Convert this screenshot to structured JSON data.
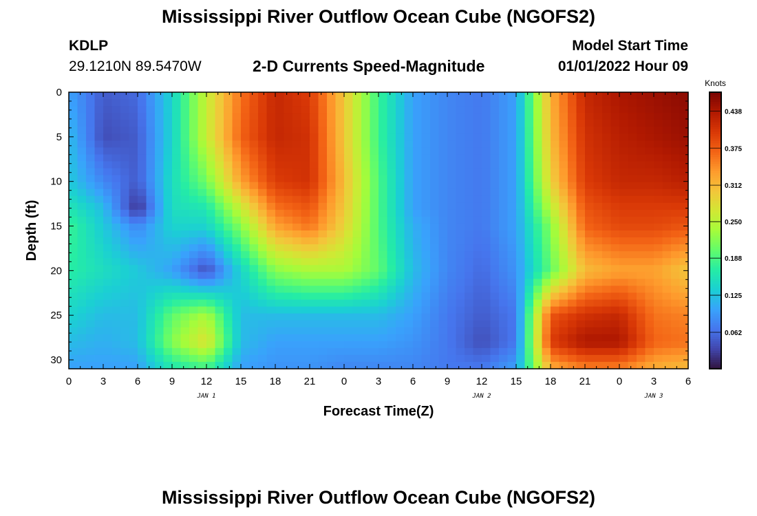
{
  "header": {
    "title": "Mississippi River Outflow Ocean Cube (NGOFS2)",
    "station_id": "KDLP",
    "station_coords": "29.1210N  89.5470W",
    "subtitle": "2-D Currents Speed-Magnitude",
    "model_start_label": "Model Start Time",
    "model_start_value": "01/01/2022 Hour 09"
  },
  "footer": {
    "title": "Mississippi River Outflow Ocean Cube (NGOFS2)"
  },
  "chart_data": {
    "type": "heatmap",
    "subtitle": "2-D Currents Speed-Magnitude",
    "xlabel": "Forecast Time(Z)",
    "ylabel": "Depth (ft)",
    "x_unit": "forecast hour",
    "xlim": [
      0,
      54
    ],
    "ylim": [
      0,
      31
    ],
    "y_inverted": true,
    "x_ticks": [
      0,
      3,
      6,
      9,
      12,
      15,
      18,
      21,
      24,
      27,
      30,
      33,
      36,
      39,
      42,
      45,
      48,
      51,
      54
    ],
    "x_tick_labels": [
      "0",
      "3",
      "6",
      "9",
      "12",
      "15",
      "18",
      "21",
      "0",
      "3",
      "6",
      "9",
      "12",
      "15",
      "18",
      "21",
      "0",
      "3",
      "6"
    ],
    "y_ticks": [
      0,
      5,
      10,
      15,
      20,
      25,
      30
    ],
    "y_tick_labels": [
      "0",
      "5",
      "10",
      "15",
      "20",
      "25",
      "30"
    ],
    "date_labels": [
      {
        "x": 12,
        "label": "JAN 1"
      },
      {
        "x": 36,
        "label": "JAN 2"
      },
      {
        "x": 51,
        "label": "JAN 3"
      }
    ],
    "colorbar": {
      "title": "Knots",
      "min": 0.0,
      "max": 0.47,
      "ticks": [
        0.438,
        0.375,
        0.312,
        0.25,
        0.188,
        0.125,
        0.062
      ],
      "tick_labels": [
        "0.438",
        "0.375",
        "0.312",
        "0.250",
        "0.188",
        "0.125",
        "0.062"
      ],
      "colors": [
        "#30123b",
        "#4145ab",
        "#4675ed",
        "#39a2fc",
        "#1bcfd4",
        "#24eca6",
        "#61fc6c",
        "#a4fc3b",
        "#d1e834",
        "#f3c63a",
        "#fe9b2d",
        "#f36315",
        "#d93806",
        "#b11901",
        "#7a0403"
      ]
    },
    "grid": false,
    "field_knots": {
      "times": [
        0,
        3,
        6,
        9,
        12,
        15,
        18,
        21,
        24,
        27,
        30,
        33,
        36,
        39,
        42,
        45,
        48,
        51,
        54
      ],
      "depths": [
        0,
        5,
        10,
        13,
        15,
        20,
        25,
        28,
        31
      ],
      "rows": [
        [
          0.1,
          0.05,
          0.06,
          0.14,
          0.26,
          0.36,
          0.42,
          0.4,
          0.3,
          0.18,
          0.1,
          0.08,
          0.07,
          0.1,
          0.32,
          0.42,
          0.44,
          0.45,
          0.46
        ],
        [
          0.12,
          0.04,
          0.05,
          0.14,
          0.26,
          0.37,
          0.42,
          0.41,
          0.3,
          0.18,
          0.1,
          0.08,
          0.07,
          0.1,
          0.31,
          0.41,
          0.43,
          0.44,
          0.45
        ],
        [
          0.13,
          0.08,
          0.05,
          0.15,
          0.21,
          0.33,
          0.4,
          0.41,
          0.31,
          0.19,
          0.1,
          0.08,
          0.07,
          0.1,
          0.29,
          0.4,
          0.42,
          0.42,
          0.43
        ],
        [
          0.16,
          0.12,
          0.02,
          0.15,
          0.16,
          0.26,
          0.36,
          0.38,
          0.3,
          0.19,
          0.1,
          0.08,
          0.07,
          0.1,
          0.25,
          0.38,
          0.4,
          0.4,
          0.4
        ],
        [
          0.18,
          0.13,
          0.08,
          0.14,
          0.14,
          0.22,
          0.33,
          0.36,
          0.29,
          0.19,
          0.11,
          0.08,
          0.07,
          0.1,
          0.22,
          0.37,
          0.39,
          0.39,
          0.38
        ],
        [
          0.17,
          0.15,
          0.13,
          0.1,
          0.04,
          0.14,
          0.22,
          0.24,
          0.24,
          0.2,
          0.12,
          0.08,
          0.06,
          0.09,
          0.2,
          0.31,
          0.33,
          0.33,
          0.3
        ],
        [
          0.14,
          0.12,
          0.12,
          0.2,
          0.24,
          0.12,
          0.12,
          0.12,
          0.12,
          0.12,
          0.1,
          0.07,
          0.05,
          0.07,
          0.38,
          0.41,
          0.42,
          0.36,
          0.35
        ],
        [
          0.12,
          0.11,
          0.12,
          0.22,
          0.28,
          0.12,
          0.1,
          0.1,
          0.1,
          0.1,
          0.09,
          0.07,
          0.04,
          0.07,
          0.4,
          0.44,
          0.44,
          0.37,
          0.36
        ],
        [
          0.1,
          0.1,
          0.1,
          0.16,
          0.18,
          0.1,
          0.09,
          0.09,
          0.08,
          0.08,
          0.08,
          0.07,
          0.07,
          0.1,
          0.32,
          0.35,
          0.35,
          0.32,
          0.31
        ]
      ]
    }
  }
}
